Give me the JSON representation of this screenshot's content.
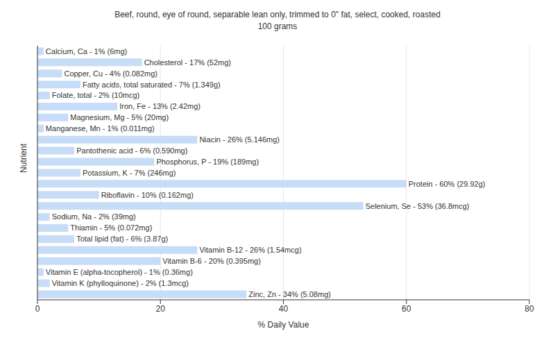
{
  "chart_data": {
    "type": "bar",
    "title": "Beef, round, eye of round, separable lean only, trimmed to 0\" fat, select, cooked, roasted",
    "subtitle": "100 grams",
    "x_label": "% Daily Value",
    "y_label": "Nutrient",
    "orientation": "horizontal",
    "categories": [
      "Calcium, Ca - 1% (6mg)",
      "Cholesterol - 17% (52mg)",
      "Copper, Cu - 4% (0.082mg)",
      "Fatty acids, total saturated - 7% (1.349g)",
      "Folate, total - 2% (10mcg)",
      "Iron, Fe - 13% (2.42mg)",
      "Magnesium, Mg - 5% (20mg)",
      "Manganese, Mn - 1% (0.011mg)",
      "Niacin - 26% (5.146mg)",
      "Pantothenic acid - 6% (0.590mg)",
      "Phosphorus, P - 19% (189mg)",
      "Potassium, K - 7% (246mg)",
      "Protein - 60% (29.92g)",
      "Riboflavin - 10% (0.162mg)",
      "Selenium, Se - 53% (36.8mcg)",
      "Sodium, Na - 2% (39mg)",
      "Thiamin - 5% (0.072mg)",
      "Total lipid (fat) - 6% (3.87g)",
      "Vitamin B-12 - 26% (1.54mcg)",
      "Vitamin B-6 - 20% (0.395mg)",
      "Vitamin E (alpha-tocopherol) - 1% (0.36mg)",
      "Vitamin K (phylloquinone) - 2% (1.3mcg)",
      "Zinc, Zn - 34% (5.08mg)"
    ],
    "values": [
      1,
      17,
      4,
      7,
      2,
      13,
      5,
      1,
      26,
      6,
      19,
      7,
      60,
      10,
      53,
      2,
      5,
      6,
      26,
      20,
      1,
      2,
      34
    ],
    "color": "#c6dcf7",
    "xlim": [
      0,
      80
    ],
    "xticks": [
      0,
      20,
      40,
      60,
      80
    ],
    "grid": true,
    "tick_labels": "x"
  }
}
